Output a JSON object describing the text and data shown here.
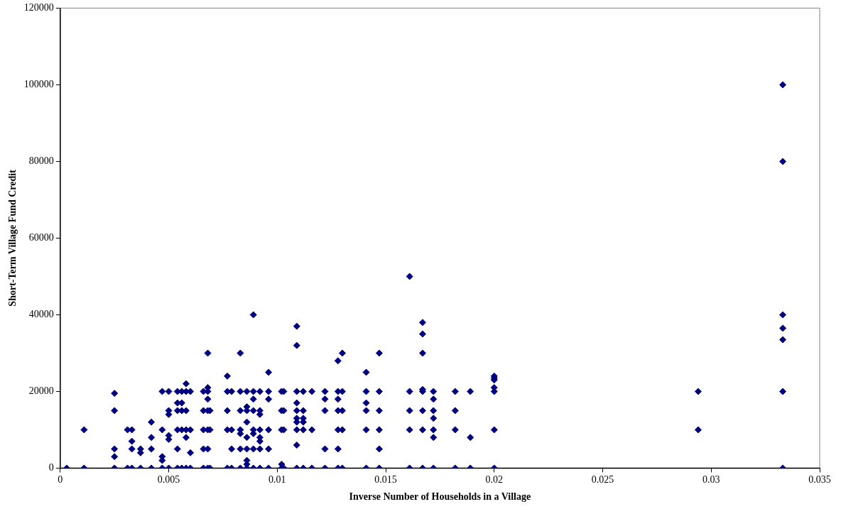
{
  "chart_data": {
    "type": "scatter",
    "xlabel": "Inverse Number of Households in a Village",
    "ylabel": "Short-Term Village Fund Credit",
    "xlim": [
      0,
      0.035
    ],
    "xticks": [
      0,
      0.005,
      0.01,
      0.015,
      0.02,
      0.025,
      0.03,
      0.035
    ],
    "ylim": [
      0,
      120000
    ],
    "yticks": [
      0,
      20000,
      40000,
      60000,
      80000,
      100000,
      120000
    ],
    "grid": false,
    "legend": false,
    "marker": "diamond",
    "series": [
      {
        "color": "#000080",
        "x": [
          0.0003,
          0.0011,
          0.0011,
          0.0025,
          0.0025,
          0.0025,
          0.0025,
          0.0025,
          0.0031,
          0.0031,
          0.0033,
          0.0033,
          0.0033,
          0.0033,
          0.0037,
          0.0037,
          0.0037,
          0.0042,
          0.0042,
          0.0042,
          0.0042,
          0.0047,
          0.0047,
          0.0047,
          0.0047,
          0.0047,
          0.005,
          0.005,
          0.005,
          0.005,
          0.005,
          0.005,
          0.0054,
          0.0054,
          0.0054,
          0.0054,
          0.0054,
          0.0054,
          0.0056,
          0.0056,
          0.0056,
          0.0056,
          0.0056,
          0.0058,
          0.0058,
          0.0058,
          0.0058,
          0.0058,
          0.0058,
          0.006,
          0.006,
          0.006,
          0.006,
          0.0066,
          0.0066,
          0.0066,
          0.0066,
          0.0066,
          0.0068,
          0.0068,
          0.0068,
          0.0068,
          0.0068,
          0.0068,
          0.0068,
          0.0068,
          0.0069,
          0.0069,
          0.0069,
          0.0077,
          0.0077,
          0.0077,
          0.0077,
          0.0077,
          0.0079,
          0.0079,
          0.0079,
          0.0079,
          0.0083,
          0.0083,
          0.0083,
          0.0083,
          0.0083,
          0.0083,
          0.0083,
          0.0086,
          0.0086,
          0.0086,
          0.0086,
          0.0086,
          0.0086,
          0.0086,
          0.0086,
          0.0086,
          0.0089,
          0.0089,
          0.0089,
          0.0089,
          0.0089,
          0.0089,
          0.0089,
          0.0089,
          0.0092,
          0.0092,
          0.0092,
          0.0092,
          0.0092,
          0.0092,
          0.0092,
          0.0092,
          0.0096,
          0.0096,
          0.0096,
          0.0096,
          0.0096,
          0.0096,
          0.0102,
          0.0102,
          0.0102,
          0.0102,
          0.0102,
          0.0103,
          0.0103,
          0.0103,
          0.0103,
          0.0109,
          0.0109,
          0.0109,
          0.0109,
          0.0109,
          0.0109,
          0.0109,
          0.0109,
          0.0109,
          0.0109,
          0.0112,
          0.0112,
          0.0112,
          0.0112,
          0.0112,
          0.0112,
          0.0116,
          0.0116,
          0.0116,
          0.0122,
          0.0122,
          0.0122,
          0.0122,
          0.0122,
          0.0128,
          0.0128,
          0.0128,
          0.0128,
          0.0128,
          0.0128,
          0.0128,
          0.013,
          0.013,
          0.013,
          0.013,
          0.013,
          0.0141,
          0.0141,
          0.0141,
          0.0141,
          0.0141,
          0.0141,
          0.0147,
          0.0147,
          0.0147,
          0.0147,
          0.0147,
          0.0147,
          0.0161,
          0.0161,
          0.0161,
          0.0161,
          0.0161,
          0.0167,
          0.0167,
          0.0167,
          0.0167,
          0.0167,
          0.0167,
          0.0167,
          0.0167,
          0.0172,
          0.0172,
          0.0172,
          0.0172,
          0.0172,
          0.0172,
          0.0172,
          0.0182,
          0.0182,
          0.0182,
          0.0182,
          0.0189,
          0.0189,
          0.0189,
          0.02,
          0.02,
          0.02,
          0.02,
          0.02,
          0.02,
          0.02,
          0.0294,
          0.0294,
          0.0333,
          0.0333,
          0.0333,
          0.0333,
          0.0333,
          0.0333,
          0.0333
        ],
        "values": [
          0,
          0,
          10000,
          0,
          3000,
          5000,
          15000,
          19500,
          0,
          10000,
          0,
          5000,
          7000,
          10000,
          0,
          4000,
          5000,
          0,
          5000,
          8000,
          12000,
          0,
          2000,
          3000,
          10000,
          20000,
          0,
          7500,
          8500,
          14000,
          15000,
          20000,
          0,
          5000,
          10000,
          15000,
          17000,
          20000,
          0,
          10000,
          15000,
          17000,
          20000,
          0,
          8000,
          10000,
          15000,
          20000,
          22000,
          0,
          4000,
          10000,
          20000,
          0,
          5000,
          10000,
          15000,
          20000,
          0,
          5000,
          10000,
          15000,
          18000,
          20000,
          21000,
          30000,
          0,
          10000,
          15000,
          0,
          10000,
          15000,
          20000,
          24000,
          0,
          5000,
          10000,
          20000,
          0,
          5000,
          9000,
          10000,
          15000,
          20000,
          30000,
          0,
          1000,
          2000,
          5000,
          8000,
          12000,
          15000,
          16000,
          20000,
          0,
          5000,
          9000,
          10000,
          15000,
          18000,
          20000,
          40000,
          0,
          5000,
          7000,
          8000,
          10000,
          14000,
          15000,
          20000,
          0,
          5000,
          10000,
          18000,
          20000,
          25000,
          0,
          1000,
          10000,
          15000,
          20000,
          0,
          10000,
          15000,
          20000,
          0,
          6000,
          10000,
          12000,
          13000,
          15000,
          17000,
          20000,
          32000,
          37000,
          0,
          10000,
          12000,
          13000,
          15000,
          20000,
          0,
          10000,
          20000,
          0,
          5000,
          15000,
          18000,
          20000,
          0,
          5000,
          10000,
          15000,
          18000,
          20000,
          28000,
          0,
          10000,
          15000,
          20000,
          30000,
          0,
          10000,
          15000,
          17000,
          20000,
          25000,
          0,
          5000,
          10000,
          15000,
          20000,
          30000,
          0,
          10000,
          15000,
          20000,
          50000,
          0,
          10000,
          15000,
          20000,
          20500,
          30000,
          35000,
          38000,
          0,
          8000,
          10000,
          13000,
          15000,
          18000,
          20000,
          0,
          10000,
          15000,
          20000,
          0,
          8000,
          20000,
          0,
          10000,
          20000,
          21000,
          23000,
          23500,
          24000,
          10000,
          20000,
          0,
          20000,
          33500,
          36500,
          40000,
          80000,
          100000
        ]
      }
    ]
  }
}
